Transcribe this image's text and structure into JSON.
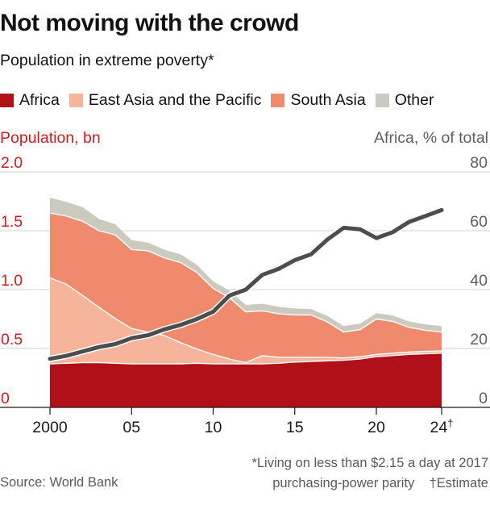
{
  "title": "Not moving with the crowd",
  "subtitle": "Population in extreme poverty*",
  "legend": [
    {
      "label": "Africa",
      "color": "#b11019"
    },
    {
      "label": "East Asia and the Pacific",
      "color": "#f6b49b"
    },
    {
      "label": "South Asia",
      "color": "#f08a6c"
    },
    {
      "label": "Other",
      "color": "#ccc9bf"
    }
  ],
  "left_axis_title": "Population, bn",
  "right_axis_title": "Africa, % of total",
  "footnote_line1": "*Living on less than $2.15 a day at 2017",
  "footnote_line2_a": "purchasing-power parity",
  "footnote_line2_b": "†Estimate",
  "source": "Source: World Bank",
  "chart_data": {
    "type": "area",
    "x": [
      2000,
      2001,
      2002,
      2003,
      2004,
      2005,
      2006,
      2007,
      2008,
      2009,
      2010,
      2011,
      2012,
      2013,
      2014,
      2015,
      2016,
      2017,
      2018,
      2019,
      2020,
      2021,
      2022,
      2023,
      2024
    ],
    "x_ticks": [
      2000,
      2005,
      2010,
      2015,
      2020,
      2024
    ],
    "x_tick_labels": [
      "2000",
      "05",
      "10",
      "15",
      "20",
      "24†"
    ],
    "ylim": [
      0,
      2.0
    ],
    "y_ticks": [
      0,
      0.5,
      1.0,
      1.5,
      2.0
    ],
    "y_tick_labels": [
      "0",
      "0.5",
      "1.0",
      "1.5",
      "2.0"
    ],
    "y2lim": [
      0,
      80
    ],
    "y2_ticks": [
      0,
      20,
      40,
      60,
      80
    ],
    "y2_tick_labels": [
      "0",
      "20",
      "40",
      "60",
      "80"
    ],
    "stacked": true,
    "series": [
      {
        "name": "Africa",
        "color": "#b11019",
        "values": [
          0.37,
          0.375,
          0.38,
          0.38,
          0.375,
          0.37,
          0.37,
          0.37,
          0.37,
          0.375,
          0.37,
          0.37,
          0.37,
          0.37,
          0.375,
          0.385,
          0.39,
          0.395,
          0.4,
          0.41,
          0.43,
          0.44,
          0.45,
          0.455,
          0.46
        ]
      },
      {
        "name": "East Asia and the Pacific",
        "color": "#f6b49b",
        "values": [
          0.73,
          0.67,
          0.57,
          0.47,
          0.38,
          0.3,
          0.27,
          0.24,
          0.18,
          0.12,
          0.08,
          0.04,
          0.01,
          0.07,
          0.05,
          0.04,
          0.035,
          0.03,
          0.02,
          0.02,
          0.02,
          0.02,
          0.02,
          0.02,
          0.02
        ]
      },
      {
        "name": "South Asia",
        "color": "#f08a6c",
        "values": [
          0.55,
          0.58,
          0.63,
          0.65,
          0.71,
          0.67,
          0.69,
          0.66,
          0.68,
          0.65,
          0.56,
          0.52,
          0.43,
          0.38,
          0.37,
          0.36,
          0.36,
          0.3,
          0.22,
          0.23,
          0.3,
          0.27,
          0.21,
          0.18,
          0.16
        ]
      },
      {
        "name": "Other",
        "color": "#ccc9bf",
        "values": [
          0.13,
          0.12,
          0.12,
          0.1,
          0.09,
          0.08,
          0.07,
          0.07,
          0.07,
          0.065,
          0.06,
          0.06,
          0.06,
          0.06,
          0.06,
          0.055,
          0.05,
          0.05,
          0.05,
          0.05,
          0.05,
          0.05,
          0.05,
          0.05,
          0.05
        ]
      }
    ],
    "line_series": {
      "name": "Africa, % of total",
      "axis": "right",
      "color": "#4d4d4d",
      "values": [
        16.5,
        17.5,
        19,
        20.5,
        21.5,
        23.5,
        24.5,
        26.5,
        28,
        30,
        32.5,
        38,
        40,
        45,
        47,
        50,
        52,
        57,
        61,
        60.5,
        57.5,
        59.5,
        63,
        65,
        67
      ]
    },
    "notes": [
      "2024 is an estimate"
    ]
  }
}
